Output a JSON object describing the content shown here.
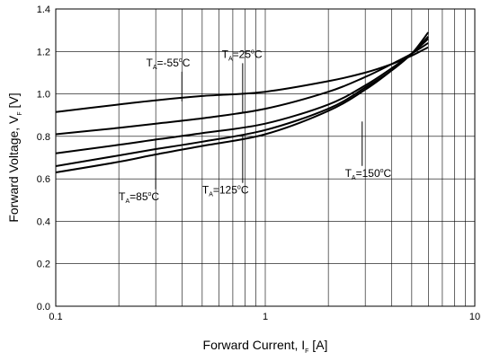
{
  "chart_data": {
    "type": "line",
    "title": "",
    "xlabel": {
      "main": "Forward Current, I",
      "sub": "F",
      "unit": " [A]"
    },
    "ylabel": {
      "main": "Forward Voltage, V",
      "sub": "F",
      "unit": " [V]"
    },
    "xscale": "log",
    "xlim": [
      0.1,
      10
    ],
    "ylim": [
      0.0,
      1.4
    ],
    "grid": true,
    "x_ticks": [
      "0.1",
      "1",
      "10"
    ],
    "y_ticks": [
      "0.0",
      "0.2",
      "0.4",
      "0.6",
      "0.8",
      "1.0",
      "1.2",
      "1.4"
    ],
    "series": [
      {
        "name": "T_A=-55°C",
        "x": [
          0.1,
          0.2,
          0.3,
          0.5,
          1,
          2,
          3,
          4,
          5,
          6
        ],
        "y": [
          0.915,
          0.95,
          0.97,
          0.99,
          1.01,
          1.06,
          1.1,
          1.14,
          1.18,
          1.22
        ]
      },
      {
        "name": "T_A=25°C",
        "x": [
          0.1,
          0.2,
          0.3,
          0.5,
          1,
          2,
          3,
          4,
          5,
          6
        ],
        "y": [
          0.81,
          0.84,
          0.86,
          0.885,
          0.93,
          1.01,
          1.08,
          1.14,
          1.19,
          1.24
        ]
      },
      {
        "name": "T_A=85°C",
        "x": [
          0.1,
          0.2,
          0.3,
          0.5,
          1,
          2,
          3,
          4,
          5,
          6
        ],
        "y": [
          0.72,
          0.76,
          0.785,
          0.815,
          0.86,
          0.95,
          1.04,
          1.12,
          1.19,
          1.26
        ]
      },
      {
        "name": "T_A=125°C",
        "x": [
          0.1,
          0.2,
          0.3,
          0.5,
          1,
          2,
          3,
          4,
          5,
          6
        ],
        "y": [
          0.66,
          0.71,
          0.74,
          0.775,
          0.83,
          0.93,
          1.03,
          1.11,
          1.19,
          1.27
        ]
      },
      {
        "name": "T_A=150°C",
        "x": [
          0.1,
          0.2,
          0.3,
          0.5,
          1,
          2,
          3,
          4,
          5,
          6
        ],
        "y": [
          0.63,
          0.68,
          0.715,
          0.755,
          0.81,
          0.92,
          1.02,
          1.11,
          1.19,
          1.29
        ]
      }
    ],
    "annotations": [
      {
        "base": "T",
        "sub": "A",
        "text": "=-55",
        "unit": "C",
        "sup": "o",
        "series": 0,
        "label_xy": [
          0.27,
          1.13
        ],
        "arrow_to": [
          0.4,
          0.965
        ]
      },
      {
        "base": "T",
        "sub": "A",
        "text": "=25",
        "unit": "C",
        "sup": "o",
        "series": 1,
        "label_xy": [
          0.62,
          1.17
        ],
        "arrow_to": [
          0.78,
          0.91
        ]
      },
      {
        "base": "T",
        "sub": "A",
        "text": "=85",
        "unit": "C",
        "sup": "o",
        "series": 2,
        "label_xy": [
          0.2,
          0.5
        ],
        "arrow_to": [
          0.3,
          0.79
        ]
      },
      {
        "base": "T",
        "sub": "A",
        "text": "=125",
        "unit": "C",
        "sup": "o",
        "series": 3,
        "label_xy": [
          0.5,
          0.53
        ],
        "arrow_to": [
          0.78,
          0.81
        ]
      },
      {
        "base": "T",
        "sub": "A",
        "text": "=150",
        "unit": "C",
        "sup": "o",
        "series": 4,
        "label_xy": [
          2.4,
          0.61
        ],
        "arrow_to": [
          2.9,
          0.87
        ]
      }
    ]
  }
}
